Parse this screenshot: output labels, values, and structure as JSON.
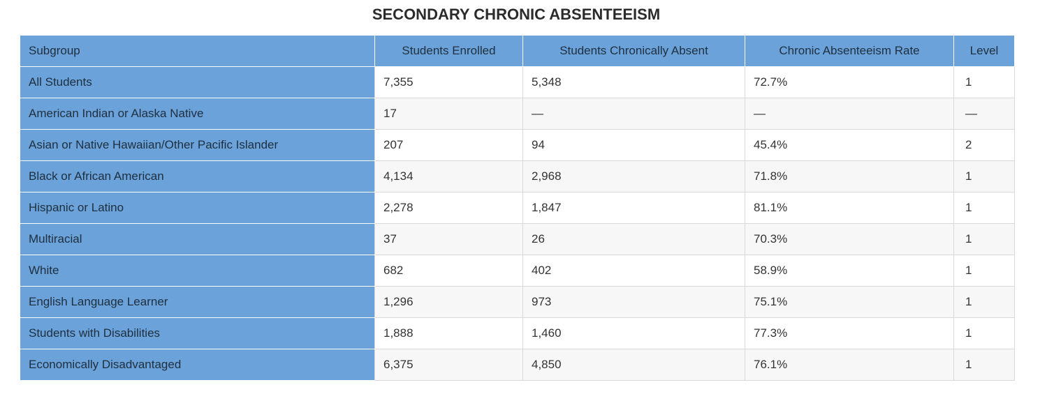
{
  "title": "SECONDARY CHRONIC ABSENTEEISM",
  "colors": {
    "header_bg": "#6aa2d9",
    "row_alt_bg": "#f7f7f7",
    "row_bg": "#ffffff"
  },
  "table": {
    "headers": [
      "Subgroup",
      "Students Enrolled",
      "Students Chronically Absent",
      "Chronic Absenteeism Rate",
      "Level"
    ],
    "rows": [
      [
        "All Students",
        "7,355",
        "5,348",
        "72.7%",
        "1"
      ],
      [
        "American Indian or Alaska Native",
        "17",
        "—",
        "—",
        "—"
      ],
      [
        "Asian or Native Hawaiian/Other Pacific Islander",
        "207",
        "94",
        "45.4%",
        "2"
      ],
      [
        "Black or African American",
        "4,134",
        "2,968",
        "71.8%",
        "1"
      ],
      [
        "Hispanic or Latino",
        "2,278",
        "1,847",
        "81.1%",
        "1"
      ],
      [
        "Multiracial",
        "37",
        "26",
        "70.3%",
        "1"
      ],
      [
        "White",
        "682",
        "402",
        "58.9%",
        "1"
      ],
      [
        "English Language Learner",
        "1,296",
        "973",
        "75.1%",
        "1"
      ],
      [
        "Students with Disabilities",
        "1,888",
        "1,460",
        "77.3%",
        "1"
      ],
      [
        "Economically Disadvantaged",
        "6,375",
        "4,850",
        "76.1%",
        "1"
      ]
    ]
  }
}
